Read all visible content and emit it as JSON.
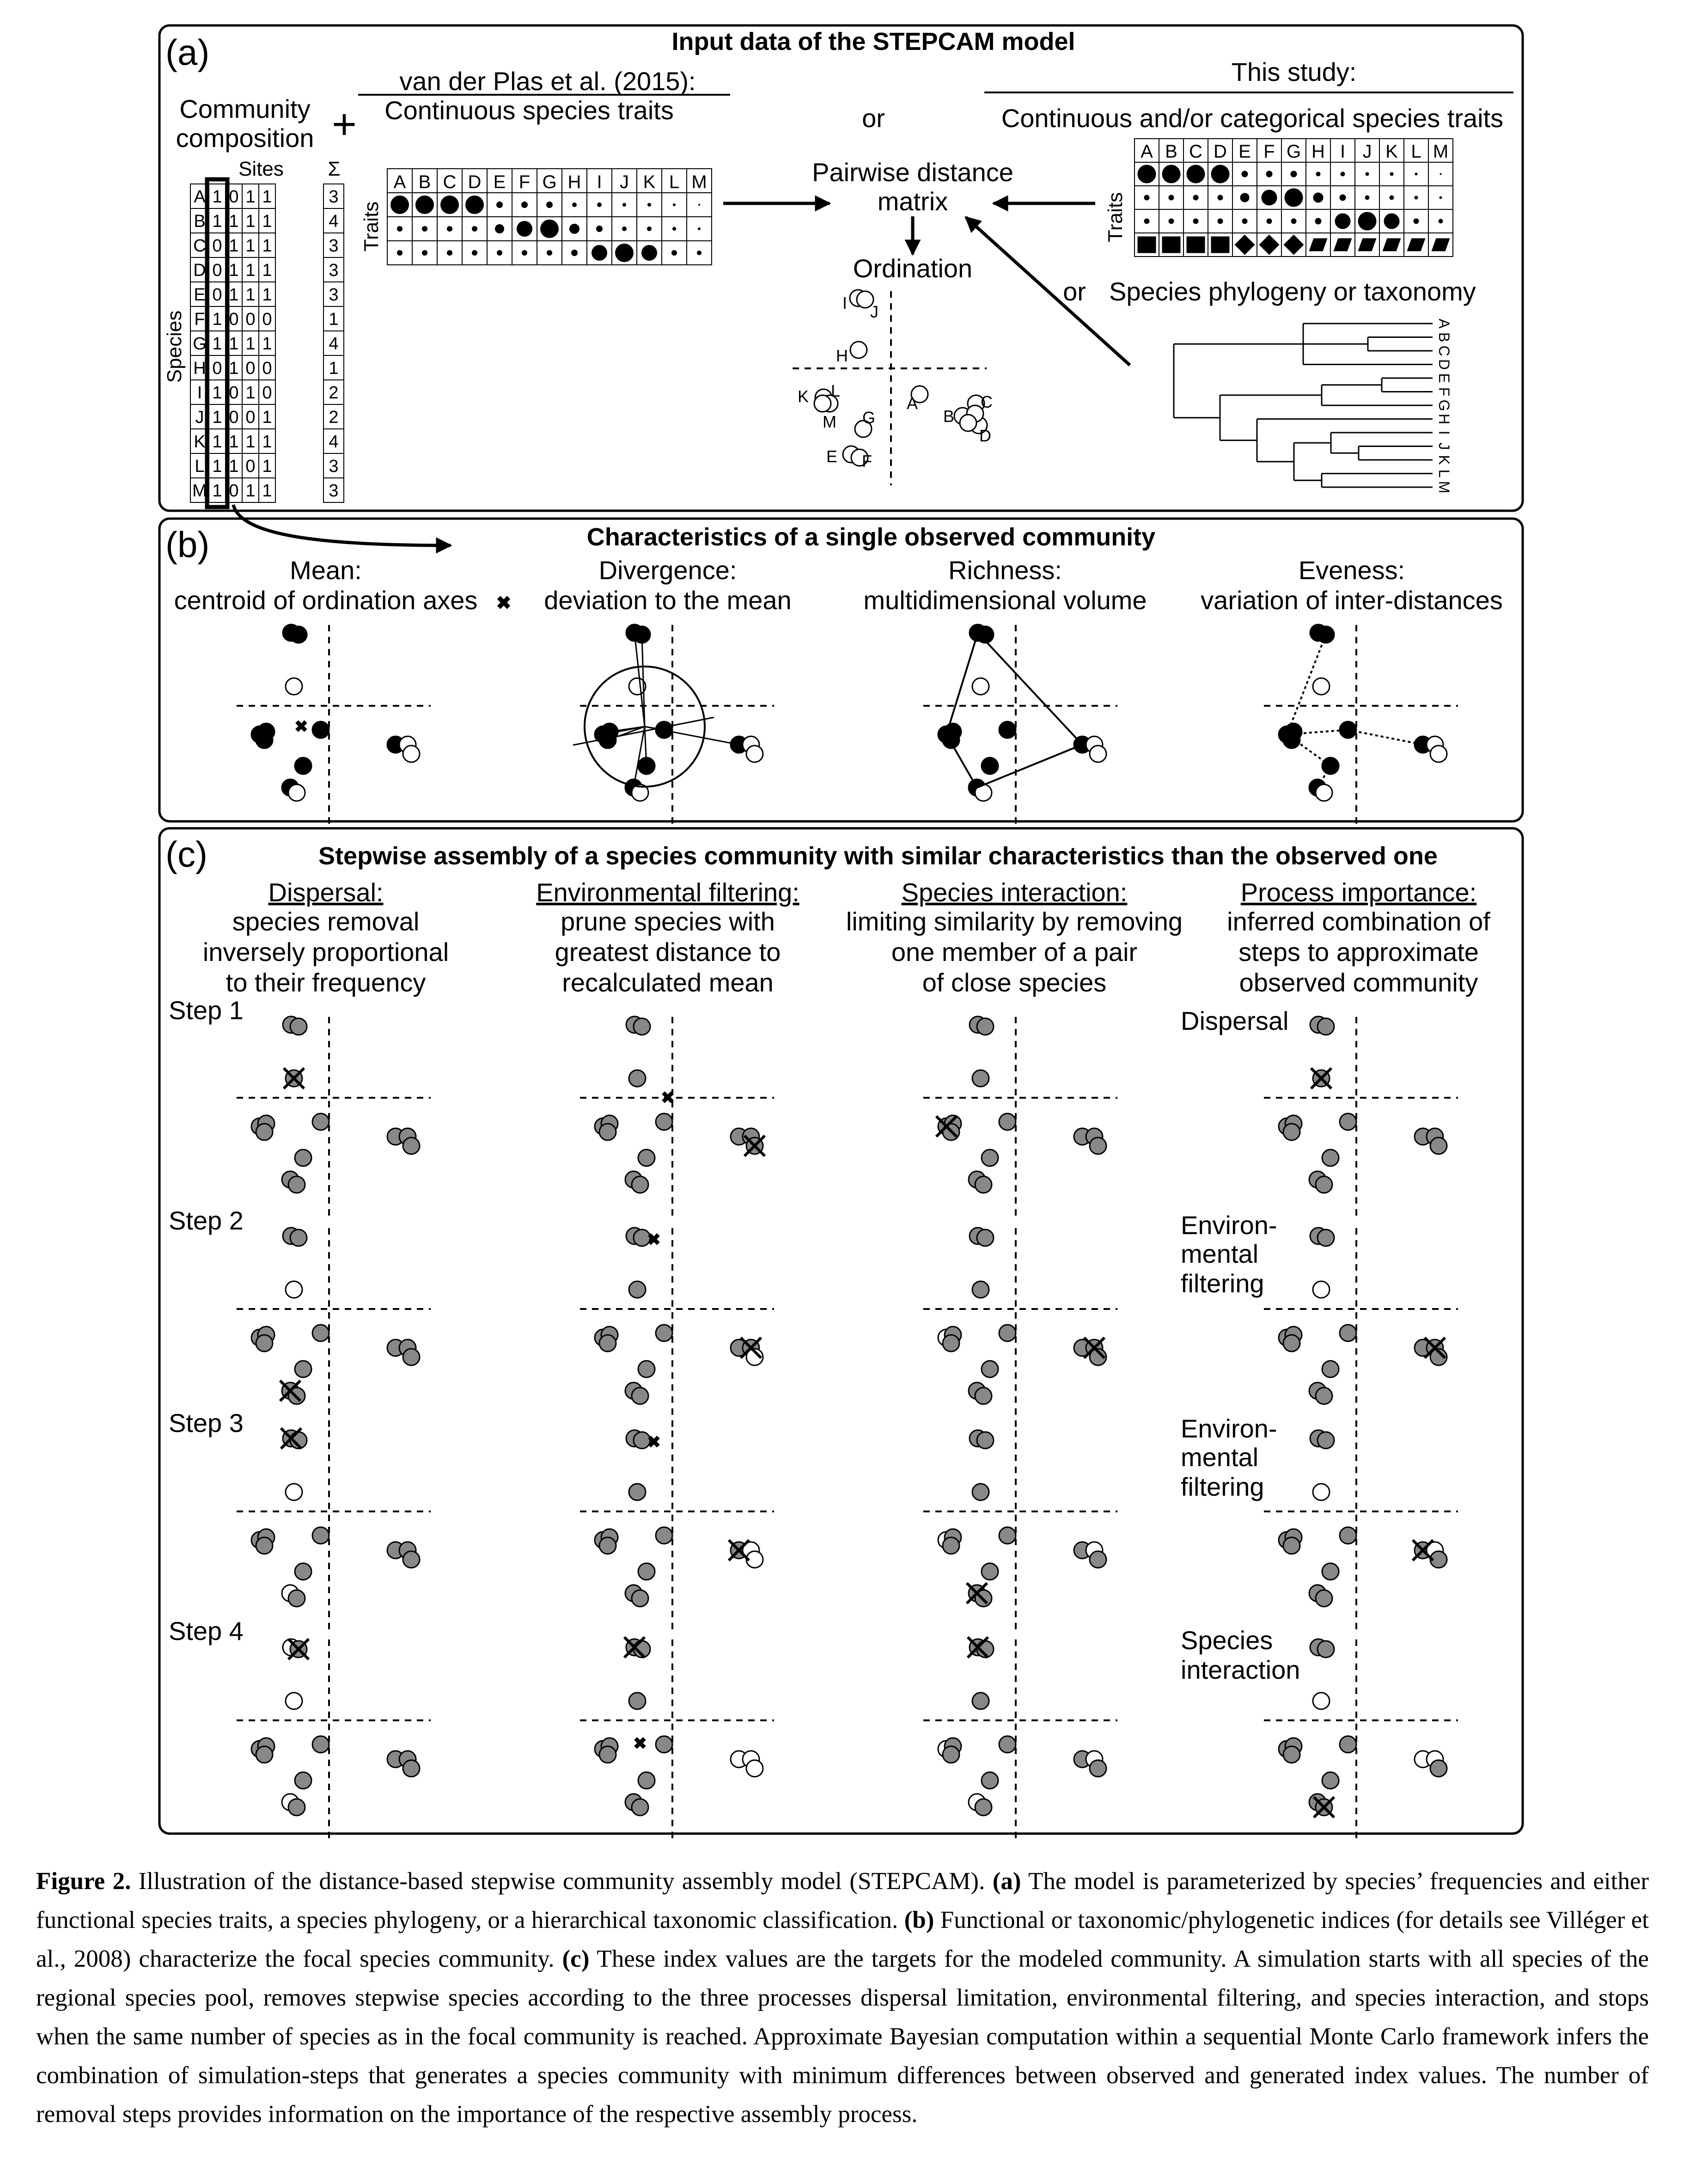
{
  "panel_a": {
    "letter": "(a)",
    "title": "Input data of the STEPCAM model",
    "community_label_1": "Community",
    "community_label_2": "composition",
    "plus": "+",
    "sites_label": "Sites",
    "sigma_label": "Σ",
    "species_axis": "Species",
    "species": [
      "A",
      "B",
      "C",
      "D",
      "E",
      "F",
      "G",
      "H",
      "I",
      "J",
      "K",
      "L",
      "M"
    ],
    "site_matrix": [
      [
        "1",
        "0",
        "1",
        "1"
      ],
      [
        "1",
        "1",
        "1",
        "1"
      ],
      [
        "0",
        "1",
        "1",
        "1"
      ],
      [
        "0",
        "1",
        "1",
        "1"
      ],
      [
        "0",
        "1",
        "1",
        "1"
      ],
      [
        "1",
        "0",
        "0",
        "0"
      ],
      [
        "1",
        "1",
        "1",
        "1"
      ],
      [
        "0",
        "1",
        "0",
        "0"
      ],
      [
        "1",
        "0",
        "1",
        "0"
      ],
      [
        "1",
        "0",
        "0",
        "1"
      ],
      [
        "1",
        "1",
        "1",
        "1"
      ],
      [
        "1",
        "1",
        "0",
        "1"
      ],
      [
        "1",
        "0",
        "1",
        "1"
      ]
    ],
    "sums": [
      "3",
      "4",
      "3",
      "3",
      "3",
      "1",
      "4",
      "1",
      "2",
      "2",
      "4",
      "3",
      "3"
    ],
    "vdp_title": "van der Plas et al. (2015):",
    "vdp_sub": "Continuous species traits",
    "traits_label": "Traits",
    "or_label": "or",
    "pairwise_1": "Pairwise distance",
    "pairwise_2": "matrix",
    "ordination": "Ordination",
    "this_study": "This study:",
    "this_study_sub": "Continuous and/or categorical species traits",
    "phylo_or": "or",
    "phylo_label": "Species phylogeny or taxonomy"
  },
  "panel_b": {
    "letter": "(b)",
    "title": "Characteristics of a single observed community",
    "columns": [
      {
        "head": "Mean:",
        "sub": "centroid of ordination axes"
      },
      {
        "head": "Divergence:",
        "sub": "deviation to the mean"
      },
      {
        "head": "Richness:",
        "sub": "multidimensional volume"
      },
      {
        "head": "Eveness:",
        "sub": "variation of inter-distances"
      }
    ]
  },
  "panel_c": {
    "letter": "(c)",
    "title": "Stepwise assembly of a species community with similar characteristics than the observed one",
    "columns": [
      {
        "head": "Dispersal:",
        "lines": [
          "species removal",
          "inversely proportional",
          "to their frequency"
        ]
      },
      {
        "head": "Environmental filtering:",
        "lines": [
          "prune species with",
          "greatest distance to",
          "recalculated mean"
        ]
      },
      {
        "head": "Species interaction:",
        "lines": [
          "limiting similarity by removing",
          "one member of a pair",
          "of close species"
        ]
      },
      {
        "head": "Process importance:",
        "lines": [
          "inferred combination of",
          "steps to approximate",
          "observed community"
        ]
      }
    ],
    "steps": [
      "Step 1",
      "Step 2",
      "Step 3",
      "Step 4"
    ],
    "process_labels": [
      [
        "Dispersal"
      ],
      [
        "Environ-",
        "mental",
        "filtering"
      ],
      [
        "Environ-",
        "mental",
        "filtering"
      ],
      [
        "Species",
        "interaction"
      ]
    ]
  },
  "caption": {
    "label": "Figure 2.",
    "text_1": " Illustration of the distance-based stepwise community assembly model (STEPCAM). ",
    "a": "(a)",
    "text_2": " The model is parameterized by species’ frequencies and either functional species traits, a species phylogeny, or a hierarchical taxonomic classification. ",
    "b": "(b)",
    "text_3": " Functional or taxonomic/phylogenetic indices (for details see Villéger et al., 2008) characterize the focal species community. ",
    "c": "(c)",
    "text_4": " These index values are the targets for the modeled community. A simulation starts with all species of the regional species pool, removes stepwise species according to the three processes dispersal limitation, environmental filtering, and species interaction, and stops when the same number of species as in the focal community is reached. Approximate Bayesian computation within a sequential Monte Carlo framework infers the combination of simulation-steps that generates a species community with minimum differences between observed and generated index values. The number of removal steps provides information on the importance of the respective assembly process."
  }
}
